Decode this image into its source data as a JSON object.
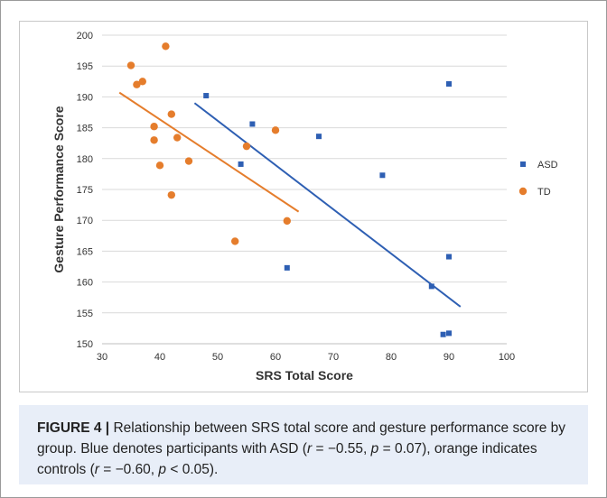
{
  "chart_data": {
    "type": "scatter",
    "xlabel": "SRS Total Score",
    "ylabel": "Gesture Performance Score",
    "xlim": [
      30,
      100
    ],
    "ylim": [
      150,
      200
    ],
    "x_ticks": [
      30,
      40,
      50,
      60,
      70,
      80,
      90,
      100
    ],
    "y_ticks": [
      150,
      155,
      160,
      165,
      170,
      175,
      180,
      185,
      190,
      195,
      200
    ],
    "grid": "horizontal",
    "legend_position": "right",
    "series": [
      {
        "name": "ASD",
        "color": "#2e5fb3",
        "marker": "square",
        "points": [
          [
            48,
            190.2
          ],
          [
            56,
            185.6
          ],
          [
            54,
            179.1
          ],
          [
            67.5,
            183.6
          ],
          [
            62,
            162.3
          ],
          [
            78.5,
            177.3
          ],
          [
            87,
            159.3
          ],
          [
            90,
            192.1
          ],
          [
            90,
            164.1
          ],
          [
            89,
            151.5
          ],
          [
            90,
            151.7
          ]
        ],
        "trendline": [
          [
            46,
            189
          ],
          [
            92,
            156
          ]
        ]
      },
      {
        "name": "TD",
        "color": "#e57d2c",
        "marker": "circle",
        "points": [
          [
            35,
            195.1
          ],
          [
            36,
            192
          ],
          [
            37,
            192.5
          ],
          [
            41,
            198.2
          ],
          [
            39,
            185.2
          ],
          [
            39,
            183
          ],
          [
            42,
            187.2
          ],
          [
            43,
            183.4
          ],
          [
            40,
            178.9
          ],
          [
            45,
            179.6
          ],
          [
            42,
            174.1
          ],
          [
            55,
            182
          ],
          [
            60,
            184.6
          ],
          [
            53,
            166.6
          ],
          [
            62,
            169.9
          ]
        ],
        "trendline": [
          [
            33,
            190.7
          ],
          [
            64,
            171.4
          ]
        ]
      }
    ]
  },
  "caption": {
    "label": "FIGURE 4 |",
    "text_1": " Relationship between SRS total score and gesture performance score by group. Blue denotes participants with ASD (",
    "r_1": "r",
    "text_2": " = −0.55, ",
    "p_1": "p",
    "text_3": " = 0.07), orange indicates controls (",
    "r_2": "r",
    "text_4": " = −0.60, ",
    "p_2": "p",
    "text_5": " < 0.05)."
  }
}
